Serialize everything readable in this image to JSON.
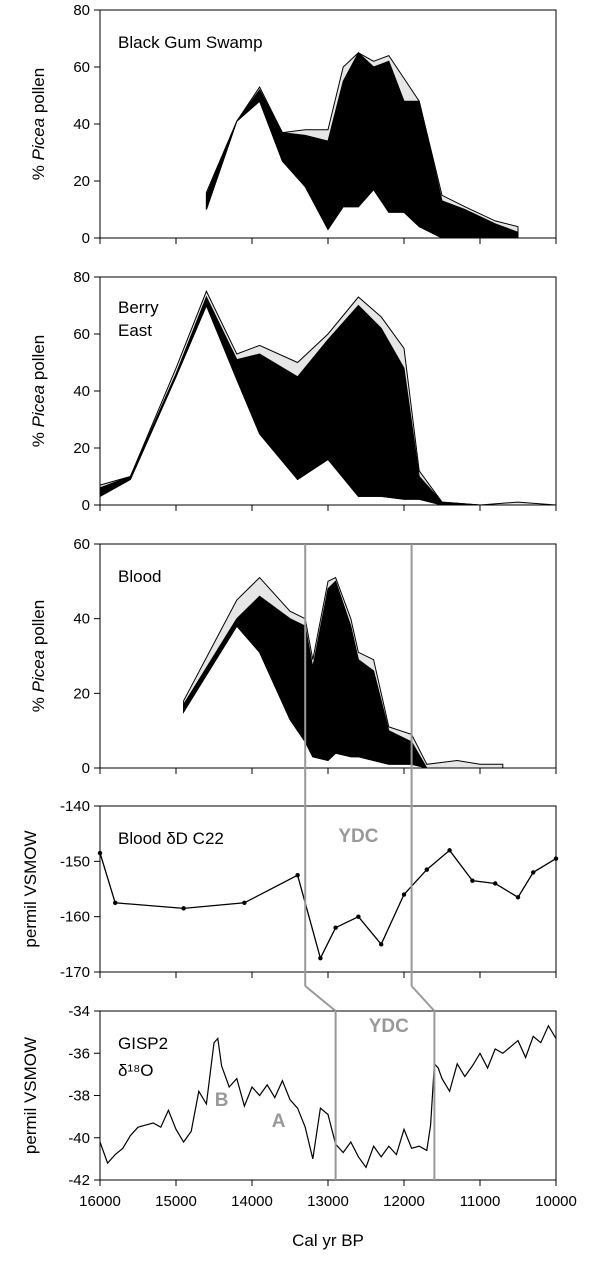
{
  "chart_data": [
    {
      "type": "area",
      "title": "Black Gum Swamp",
      "ylabel_prefix": "% ",
      "ylabel_italic": "Picea",
      "ylabel_suffix": " pollen",
      "xlim": [
        16000,
        10000
      ],
      "ylim": [
        0,
        80
      ],
      "yticks": [
        0,
        20,
        40,
        60,
        80
      ],
      "colors": {
        "total": "#e6e6e6",
        "dark": "#000000"
      },
      "x": [
        14600,
        14200,
        13900,
        13600,
        13300,
        13000,
        12800,
        12600,
        12400,
        12200,
        12000,
        11800,
        11500,
        11200,
        10800,
        10500
      ],
      "upper": [
        16,
        41,
        53,
        37,
        38,
        38,
        60,
        65,
        62,
        64,
        56,
        48,
        15,
        11,
        6,
        4
      ],
      "dark_top": [
        15,
        41,
        52,
        37,
        36,
        34,
        55,
        65,
        60,
        62,
        48,
        48,
        13,
        10,
        5,
        2
      ],
      "dark_bot": [
        10,
        41,
        48,
        27,
        18,
        3,
        11,
        11,
        17,
        9,
        9,
        4,
        0,
        0,
        0,
        0
      ]
    },
    {
      "type": "area",
      "title_lines": [
        "Berry",
        "East"
      ],
      "ylabel_prefix": "% ",
      "ylabel_italic": "Picea",
      "ylabel_suffix": " pollen",
      "xlim": [
        16000,
        10000
      ],
      "ylim": [
        0,
        80
      ],
      "yticks": [
        0,
        20,
        40,
        60,
        80
      ],
      "colors": {
        "total": "#e6e6e6",
        "dark": "#000000"
      },
      "x": [
        16000,
        15600,
        15000,
        14600,
        14200,
        13900,
        13400,
        13000,
        12600,
        12300,
        12000,
        11800,
        11500,
        11000,
        10500,
        10000
      ],
      "upper": [
        7,
        10,
        48,
        75,
        53,
        56,
        50,
        60,
        73,
        66,
        55,
        12,
        1,
        0,
        1,
        0
      ],
      "dark_top": [
        6,
        10,
        46,
        73,
        51,
        53,
        45,
        58,
        70,
        62,
        48,
        10,
        1,
        0,
        0,
        0
      ],
      "dark_bot": [
        3,
        9,
        45,
        70,
        44,
        25,
        9,
        16,
        3,
        3,
        2,
        2,
        0,
        0,
        0,
        0
      ]
    },
    {
      "type": "area",
      "title": "Blood",
      "ylabel_prefix": "% ",
      "ylabel_italic": "Picea",
      "ylabel_suffix": " pollen",
      "xlim": [
        16000,
        10000
      ],
      "ylim": [
        0,
        60
      ],
      "yticks": [
        0,
        20,
        40,
        60
      ],
      "colors": {
        "total": "#e6e6e6",
        "dark": "#000000"
      },
      "x": [
        14900,
        14200,
        13900,
        13500,
        13300,
        13200,
        13000,
        12900,
        12700,
        12600,
        12400,
        12200,
        11900,
        11700,
        11300,
        11000,
        10700
      ],
      "upper": [
        18,
        45,
        51,
        42,
        40,
        29,
        50,
        51,
        40,
        31,
        29,
        11,
        9,
        1,
        2,
        1,
        1
      ],
      "dark_top": [
        17,
        40,
        46,
        40,
        38,
        27,
        48,
        50,
        38,
        29,
        26,
        10,
        7,
        0,
        0,
        0,
        0
      ],
      "dark_bot": [
        15,
        38,
        31,
        13,
        7,
        3,
        2,
        4,
        3,
        3,
        2,
        1,
        1,
        0,
        0,
        0,
        0
      ]
    },
    {
      "type": "line",
      "title": "Blood δD C22",
      "ylabel": "permil VSMOW",
      "xlim": [
        16000,
        10000
      ],
      "ylim": [
        -170,
        -140
      ],
      "yticks": [
        -170,
        -160,
        -150,
        -140
      ],
      "annotation": "YDC",
      "x": [
        16000,
        15800,
        14900,
        14100,
        13400,
        13100,
        12900,
        12600,
        12300,
        12000,
        11700,
        11400,
        11100,
        10800,
        10500,
        10300,
        10000
      ],
      "y": [
        -148.5,
        -157.5,
        -158.5,
        -157.5,
        -152.5,
        -167.5,
        -162,
        -160,
        -165,
        -156,
        -151.5,
        -148,
        -153.5,
        -154,
        -156.5,
        -152,
        -149.5
      ]
    },
    {
      "type": "line",
      "title": "GISP2",
      "title_sub": "δ¹⁸O",
      "ylabel": "permil VSMOW",
      "xlabel": "Cal yr BP",
      "xlim": [
        16000,
        10000
      ],
      "ylim": [
        -42,
        -34
      ],
      "yticks": [
        -42,
        -40,
        -38,
        -36,
        -34
      ],
      "xticks": [
        16000,
        15000,
        14000,
        13000,
        12000,
        11000,
        10000
      ],
      "annotations": [
        {
          "text": "B",
          "x": 14400,
          "y": -38.5
        },
        {
          "text": "A",
          "x": 13650,
          "y": -39.5
        },
        {
          "text": "YDC",
          "x": 12200,
          "y": -35
        }
      ],
      "x": [
        16000,
        15900,
        15800,
        15700,
        15600,
        15500,
        15400,
        15300,
        15200,
        15100,
        15000,
        14900,
        14800,
        14700,
        14600,
        14500,
        14450,
        14400,
        14300,
        14200,
        14100,
        14000,
        13900,
        13800,
        13700,
        13600,
        13500,
        13400,
        13300,
        13200,
        13100,
        13000,
        12900,
        12800,
        12700,
        12600,
        12500,
        12400,
        12300,
        12200,
        12100,
        12000,
        11900,
        11800,
        11700,
        11650,
        11600,
        11550,
        11500,
        11400,
        11300,
        11200,
        11100,
        11000,
        10900,
        10800,
        10700,
        10600,
        10500,
        10400,
        10300,
        10200,
        10100,
        10000
      ],
      "y": [
        -40.2,
        -41.2,
        -40.8,
        -40.5,
        -39.9,
        -39.5,
        -39.4,
        -39.3,
        -39.5,
        -38.7,
        -39.6,
        -40.2,
        -39.7,
        -37.8,
        -38.4,
        -35.5,
        -35.3,
        -36.6,
        -37.6,
        -37.2,
        -38.5,
        -37.6,
        -38.0,
        -37.5,
        -38.1,
        -37.3,
        -38.2,
        -38.6,
        -39.5,
        -41.0,
        -38.6,
        -38.9,
        -40.3,
        -40.7,
        -40.2,
        -40.9,
        -41.4,
        -40.4,
        -40.9,
        -40.4,
        -40.8,
        -39.6,
        -40.5,
        -40.4,
        -40.6,
        -39.4,
        -36.5,
        -36.7,
        -37.2,
        -37.8,
        -36.5,
        -37.1,
        -36.6,
        -36.0,
        -36.7,
        -35.8,
        -36.0,
        -35.7,
        -35.4,
        -36.2,
        -35.2,
        -35.5,
        -34.7,
        -35.3
      ]
    }
  ],
  "connectors": {
    "upper_ydc": [
      13300,
      11900
    ],
    "lower_ydc": [
      12900,
      11600
    ],
    "color": "#999999"
  }
}
